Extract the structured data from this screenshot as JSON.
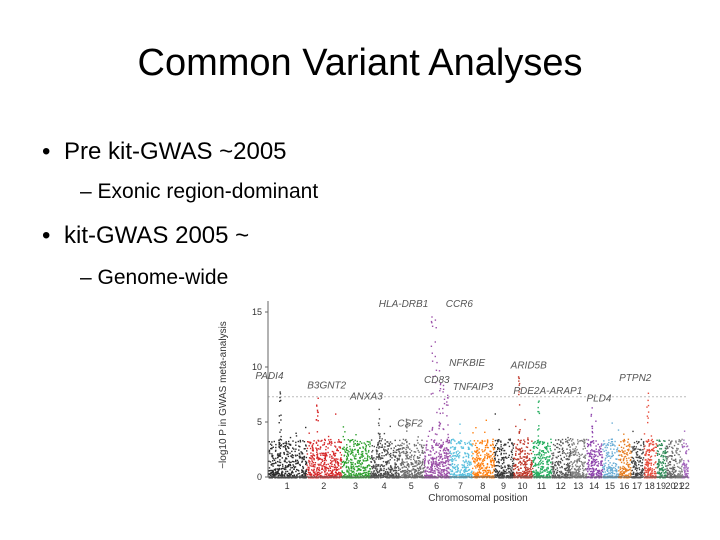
{
  "slide": {
    "title": "Common Variant Analyses",
    "bullets": [
      {
        "text": "Pre kit-GWAS ~2005",
        "sub": "Exonic region-dominant"
      },
      {
        "text": "kit-GWAS 2005 ~",
        "sub": "Genome-wide"
      }
    ],
    "bullet_char": "•",
    "dash_char": "–"
  },
  "chart_data": {
    "type": "scatter",
    "subtype": "manhattan",
    "xlabel": "Chromosomal position",
    "ylabel": "−log10 P in GWAS meta-analysis",
    "ylim": [
      0,
      16
    ],
    "yticks": [
      0,
      5,
      10,
      15
    ],
    "significance_line": 7.3,
    "categories": [
      "1",
      "2",
      "3",
      "4",
      "5",
      "6",
      "7",
      "8",
      "9",
      "10",
      "11",
      "12",
      "13",
      "14",
      "15",
      "16",
      "17",
      "18",
      "19",
      "20",
      "21",
      "22"
    ],
    "colors": [
      "#2b2b2b",
      "#d62728",
      "#2ca02c",
      "#4a4a4a",
      "#6e6e6e",
      "#9b4fa8",
      "#5bc0de",
      "#ff7f0e",
      "#333333",
      "#c0392b",
      "#27ae60",
      "#555555",
      "#7f7f7f",
      "#8e44ad",
      "#6baed6",
      "#e67e22",
      "#444444",
      "#e74c3c",
      "#2e8b57",
      "#666666",
      "#888888",
      "#a569bd"
    ],
    "genes": [
      {
        "name": "HLA-DRB1",
        "chr": "6",
        "y": 15
      },
      {
        "name": "CCR6",
        "chr": "6",
        "y": 15
      },
      {
        "name": "NFKBIE",
        "chr": "6",
        "y": 11
      },
      {
        "name": "TNFAIP3",
        "chr": "6",
        "y": 9
      },
      {
        "name": "ARID5B",
        "chr": "10",
        "y": 9.5
      },
      {
        "name": "PADI4",
        "chr": "1",
        "y": 8
      },
      {
        "name": "B3GNT2",
        "chr": "2",
        "y": 7.5
      },
      {
        "name": "CD83",
        "chr": "6",
        "y": 8
      },
      {
        "name": "ANXA3",
        "chr": "4",
        "y": 6.5
      },
      {
        "name": "CSF2",
        "chr": "5",
        "y": 5.5
      },
      {
        "name": "PDE2A-ARAP1",
        "chr": "11",
        "y": 7
      },
      {
        "name": "PLD4",
        "chr": "14",
        "y": 6.5
      },
      {
        "name": "PTPN2",
        "chr": "18",
        "y": 8
      }
    ]
  }
}
